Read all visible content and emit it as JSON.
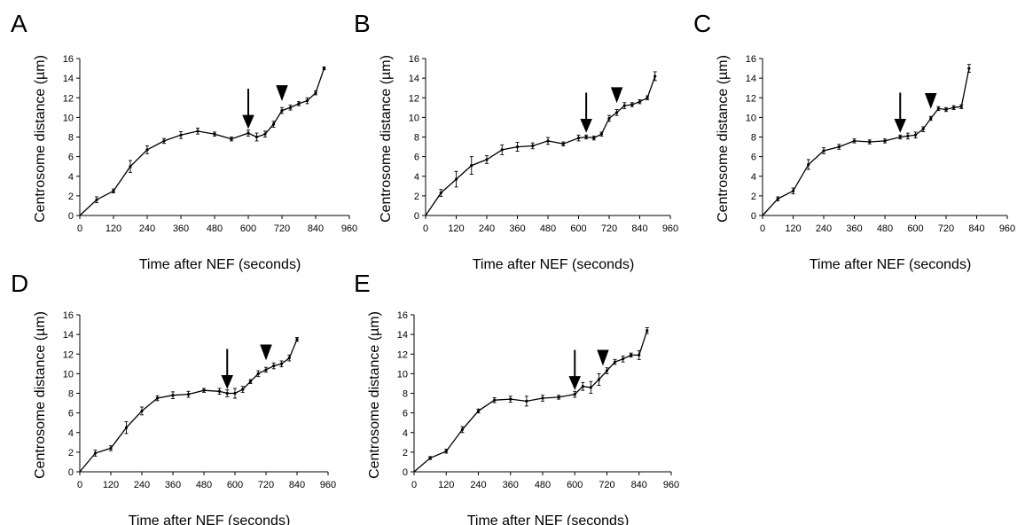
{
  "chart_data": [
    {
      "type": "line",
      "panel_label": "A",
      "xlabel": "Time after NEF (seconds)",
      "ylabel": "Centrosome distance (µm)",
      "xlim": [
        0,
        960
      ],
      "ylim": [
        0,
        16
      ],
      "xticks": [
        0,
        120,
        240,
        360,
        480,
        600,
        720,
        840,
        960
      ],
      "yticks": [
        0,
        2,
        4,
        6,
        8,
        10,
        12,
        14,
        16
      ],
      "grid": false,
      "x": [
        0,
        60,
        120,
        180,
        240,
        300,
        360,
        420,
        480,
        540,
        600,
        630,
        660,
        690,
        720,
        750,
        780,
        810,
        840,
        870
      ],
      "y": [
        0,
        1.6,
        2.5,
        5.0,
        6.7,
        7.6,
        8.2,
        8.6,
        8.3,
        7.8,
        8.4,
        8.0,
        8.3,
        9.3,
        10.7,
        11.0,
        11.4,
        11.7,
        12.5,
        15.0
      ],
      "err": [
        0,
        0.3,
        0.2,
        0.6,
        0.4,
        0.25,
        0.35,
        0.3,
        0.2,
        0.2,
        0.3,
        0.4,
        0.3,
        0.3,
        0.3,
        0.25,
        0.2,
        0.3,
        0.2,
        0.15
      ],
      "annotations": [
        {
          "kind": "arrow",
          "x": 600
        },
        {
          "kind": "arrowhead",
          "x": 720
        }
      ]
    },
    {
      "type": "line",
      "panel_label": "B",
      "xlabel": "Time after NEF (seconds)",
      "ylabel": "Centrosome distance (µm)",
      "xlim": [
        0,
        960
      ],
      "ylim": [
        0,
        16
      ],
      "xticks": [
        0,
        120,
        240,
        360,
        480,
        600,
        720,
        840,
        960
      ],
      "yticks": [
        0,
        2,
        4,
        6,
        8,
        10,
        12,
        14,
        16
      ],
      "grid": false,
      "x": [
        0,
        60,
        120,
        180,
        240,
        300,
        360,
        420,
        480,
        540,
        600,
        630,
        660,
        690,
        720,
        750,
        780,
        810,
        840,
        870,
        900
      ],
      "y": [
        0,
        2.3,
        3.7,
        5.1,
        5.7,
        6.7,
        7.0,
        7.1,
        7.6,
        7.3,
        7.9,
        8.0,
        7.9,
        8.3,
        9.9,
        10.5,
        11.2,
        11.3,
        11.6,
        12.0,
        14.2
      ],
      "err": [
        0,
        0.35,
        0.8,
        0.9,
        0.4,
        0.5,
        0.45,
        0.3,
        0.35,
        0.2,
        0.3,
        0.2,
        0.2,
        0.2,
        0.3,
        0.3,
        0.3,
        0.2,
        0.2,
        0.2,
        0.45
      ],
      "annotations": [
        {
          "kind": "arrow",
          "x": 630
        },
        {
          "kind": "arrowhead",
          "x": 750
        }
      ]
    },
    {
      "type": "line",
      "panel_label": "C",
      "xlabel": "Time after NEF (seconds)",
      "ylabel": "Centrosome distance (µm)",
      "xlim": [
        0,
        960
      ],
      "ylim": [
        0,
        16
      ],
      "xticks": [
        0,
        120,
        240,
        360,
        480,
        600,
        720,
        840,
        960
      ],
      "yticks": [
        0,
        2,
        4,
        6,
        8,
        10,
        12,
        14,
        16
      ],
      "grid": false,
      "x": [
        0,
        60,
        120,
        180,
        240,
        300,
        360,
        420,
        480,
        540,
        570,
        600,
        630,
        660,
        690,
        720,
        750,
        780,
        810
      ],
      "y": [
        0,
        1.7,
        2.5,
        5.2,
        6.6,
        7.0,
        7.6,
        7.5,
        7.6,
        8.0,
        8.1,
        8.2,
        8.8,
        9.9,
        10.9,
        10.8,
        11.0,
        11.1,
        15.0
      ],
      "err": [
        0,
        0.2,
        0.3,
        0.5,
        0.3,
        0.25,
        0.2,
        0.2,
        0.2,
        0.2,
        0.3,
        0.3,
        0.25,
        0.2,
        0.2,
        0.2,
        0.2,
        0.2,
        0.4
      ],
      "annotations": [
        {
          "kind": "arrow",
          "x": 540
        },
        {
          "kind": "arrowhead",
          "x": 660
        }
      ]
    },
    {
      "type": "line",
      "panel_label": "D",
      "xlabel": "Time after NEF (seconds)",
      "ylabel": "Centrosome distance (µm)",
      "xlim": [
        0,
        960
      ],
      "ylim": [
        0,
        16
      ],
      "xticks": [
        0,
        120,
        240,
        360,
        480,
        600,
        720,
        840,
        960
      ],
      "yticks": [
        0,
        2,
        4,
        6,
        8,
        10,
        12,
        14,
        16
      ],
      "grid": false,
      "x": [
        0,
        60,
        120,
        180,
        240,
        300,
        360,
        420,
        480,
        540,
        570,
        600,
        630,
        660,
        690,
        720,
        750,
        780,
        810,
        840
      ],
      "y": [
        0,
        1.9,
        2.4,
        4.5,
        6.2,
        7.5,
        7.8,
        7.9,
        8.3,
        8.2,
        8.0,
        8.0,
        8.4,
        9.2,
        10.0,
        10.4,
        10.8,
        11.0,
        11.6,
        13.5
      ],
      "err": [
        0,
        0.3,
        0.25,
        0.6,
        0.4,
        0.25,
        0.35,
        0.3,
        0.2,
        0.3,
        0.35,
        0.5,
        0.3,
        0.2,
        0.3,
        0.25,
        0.3,
        0.3,
        0.3,
        0.2
      ],
      "annotations": [
        {
          "kind": "arrow",
          "x": 570
        },
        {
          "kind": "arrowhead",
          "x": 720
        }
      ]
    },
    {
      "type": "line",
      "panel_label": "E",
      "xlabel": "Time after NEF (seconds)",
      "ylabel": "Centrosome distance (µm)",
      "xlim": [
        0,
        960
      ],
      "ylim": [
        0,
        16
      ],
      "xticks": [
        0,
        120,
        240,
        360,
        480,
        600,
        720,
        840,
        960
      ],
      "yticks": [
        0,
        2,
        4,
        6,
        8,
        10,
        12,
        14,
        16
      ],
      "grid": false,
      "x": [
        0,
        60,
        120,
        180,
        240,
        300,
        360,
        420,
        480,
        540,
        600,
        630,
        660,
        690,
        720,
        750,
        780,
        810,
        840,
        870
      ],
      "y": [
        0,
        1.4,
        2.1,
        4.3,
        6.2,
        7.3,
        7.4,
        7.2,
        7.5,
        7.6,
        7.9,
        8.7,
        8.6,
        9.4,
        10.3,
        11.2,
        11.5,
        11.9,
        11.9,
        14.4
      ],
      "err": [
        0,
        0.15,
        0.2,
        0.3,
        0.2,
        0.25,
        0.3,
        0.5,
        0.3,
        0.2,
        0.3,
        0.4,
        0.6,
        0.6,
        0.3,
        0.25,
        0.3,
        0.2,
        0.45,
        0.3
      ],
      "annotations": [
        {
          "kind": "arrow",
          "x": 600
        },
        {
          "kind": "arrowhead",
          "x": 705
        }
      ]
    }
  ]
}
